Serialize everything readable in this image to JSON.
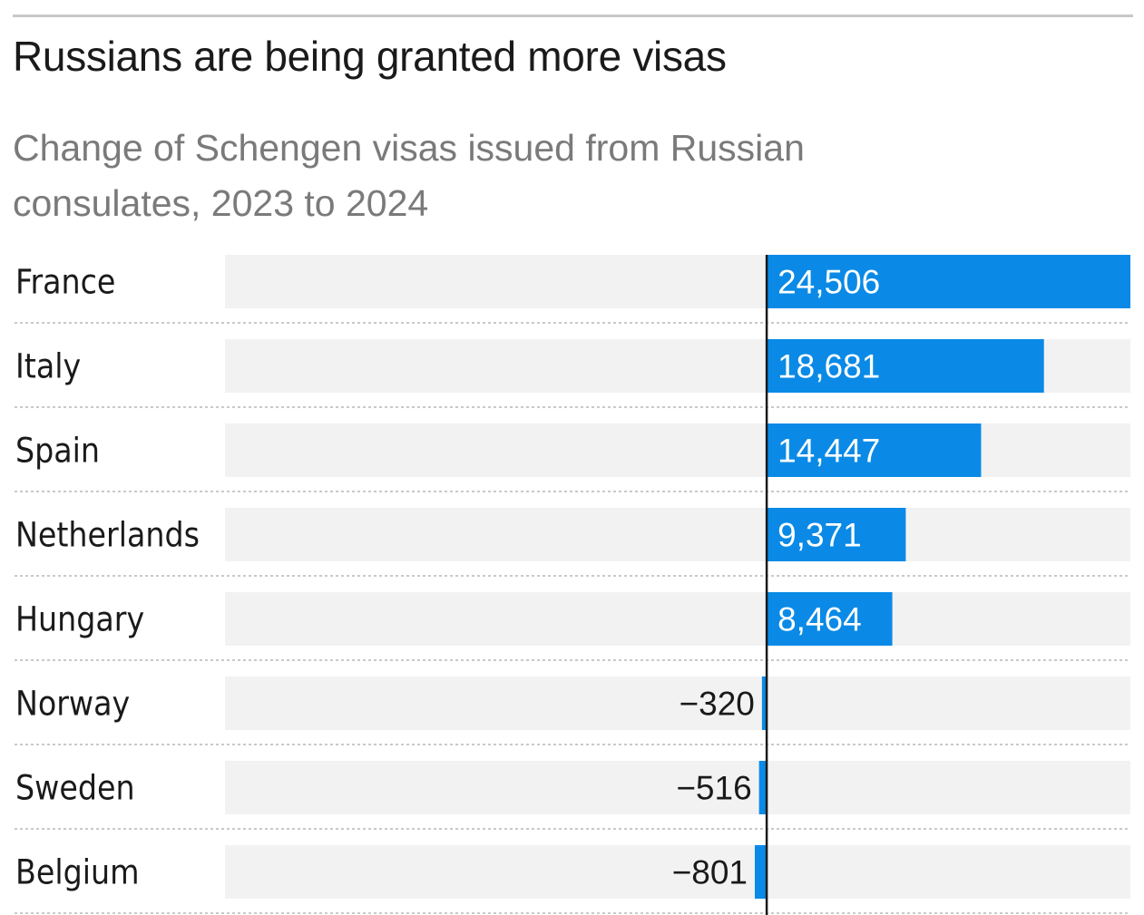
{
  "chart_data": {
    "type": "bar",
    "orientation": "horizontal",
    "title": "Russians are being granted more visas",
    "subtitle": "Change of Schengen visas issued from Russian consulates, 2023 to 2024",
    "categories": [
      "France",
      "Italy",
      "Spain",
      "Netherlands",
      "Hungary",
      "Norway",
      "Sweden",
      "Belgium"
    ],
    "values": [
      24506,
      18681,
      14447,
      9371,
      8464,
      -320,
      -516,
      -801
    ],
    "value_labels": [
      "24,506",
      "18,681",
      "14,447",
      "9,371",
      "8,464",
      "−320",
      "−516",
      "−801"
    ],
    "xlim": [
      -36500,
      24506
    ],
    "grid": false,
    "legend": "none"
  },
  "colors": {
    "bar": "#0a8ae6",
    "track": "#f2f2f2",
    "zero_line": "#1a1a1a",
    "separator": "#c9c9c9",
    "label_on_bar": "#ffffff",
    "label_off_bar": "#1a1a1a"
  }
}
